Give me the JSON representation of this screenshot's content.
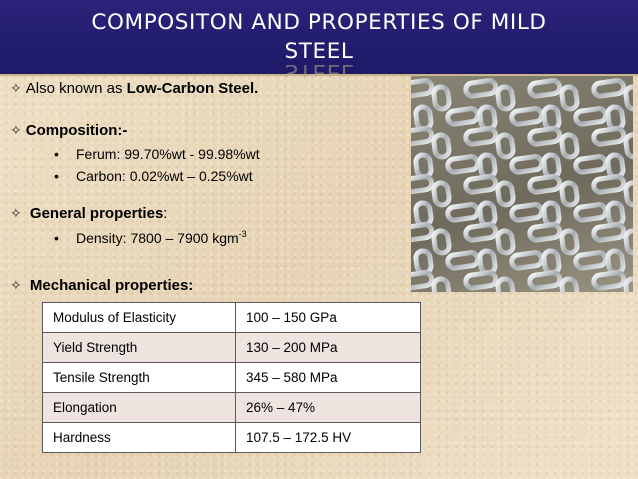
{
  "title": {
    "line1": "COMPOSITON AND PROPERTIES OF MILD",
    "line2": "STEEL"
  },
  "intro": {
    "prefix": "Also known as ",
    "bold": "Low-Carbon Steel."
  },
  "composition": {
    "heading": "Composition:-",
    "items": [
      "Ferum: 99.70%wt - 99.98%wt",
      "Carbon: 0.02%wt – 0.25%wt"
    ]
  },
  "general": {
    "heading": "General properties",
    "colon": ":",
    "density": {
      "text": "Density: 7800 – 7900 kgm",
      "exponent": "-3"
    }
  },
  "mechanical": {
    "heading": "Mechanical properties:",
    "rows": [
      {
        "property": "Modulus of Elasticity",
        "value": "100 – 150 GPa"
      },
      {
        "property": "Yield Strength",
        "value": "130 – 200 MPa"
      },
      {
        "property": "Tensile Strength",
        "value": "345 – 580 MPa"
      },
      {
        "property": "Elongation",
        "value": "26% – 47%"
      },
      {
        "property": "Hardness",
        "value": "107.5 – 172.5 HV"
      }
    ]
  },
  "photo_subject": "steel-chains",
  "colors": {
    "title_bg": "#221c70",
    "heading_text": "#000000",
    "row_alt": "#efe3e0"
  }
}
